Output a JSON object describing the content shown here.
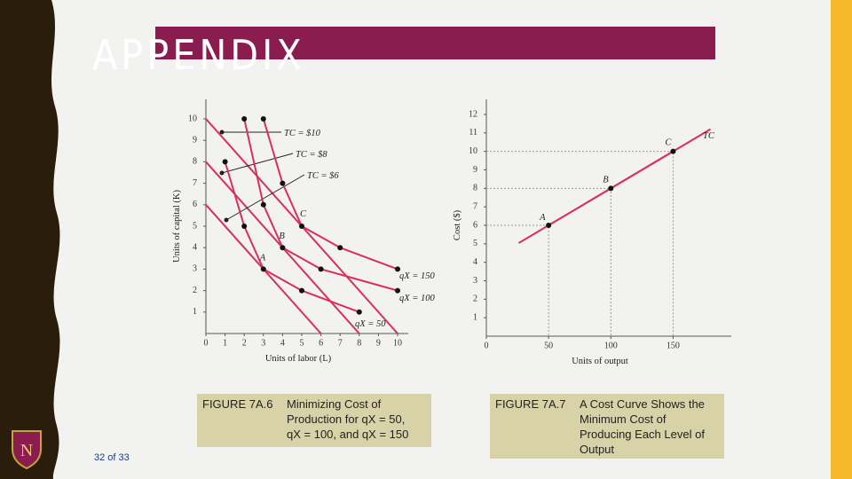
{
  "slide": {
    "title": "APPENDIX",
    "page": "32 of 33",
    "captions": [
      {
        "label": "FIGURE 7A.6",
        "lines": [
          "Minimizing Cost of",
          "Production for qX = 50,",
          "qX = 100, and qX = 150"
        ]
      },
      {
        "label": "FIGURE 7A.7",
        "lines": [
          "A Cost Curve Shows the",
          "Minimum Cost of",
          "Producing Each Level of",
          "Output"
        ]
      }
    ]
  },
  "chart_data": [
    {
      "type": "line",
      "xlabel": "Units of labor (L)",
      "ylabel": "Units of capital (K)",
      "xlim": [
        0,
        10
      ],
      "ylim": [
        0,
        10
      ],
      "xticks": [
        0,
        1,
        2,
        3,
        4,
        5,
        6,
        7,
        8,
        9,
        10
      ],
      "yticks": [
        1,
        2,
        3,
        4,
        5,
        6,
        7,
        8,
        9,
        10
      ],
      "series": [
        {
          "name": "TC = $10",
          "color": "#d9305a",
          "markers": false,
          "x": [
            0,
            10
          ],
          "values": [
            10,
            0
          ]
        },
        {
          "name": "TC = $8",
          "color": "#d9305a",
          "markers": false,
          "x": [
            0,
            8
          ],
          "values": [
            8,
            0
          ]
        },
        {
          "name": "TC = $6",
          "color": "#d9305a",
          "markers": false,
          "x": [
            0,
            6
          ],
          "values": [
            6,
            0
          ]
        },
        {
          "name": "qX = 150",
          "color": "#d9305a",
          "markers": true,
          "x": [
            3,
            4,
            5,
            7,
            10
          ],
          "values": [
            10,
            7,
            5,
            4,
            3
          ]
        },
        {
          "name": "qX = 100",
          "color": "#d9305a",
          "markers": true,
          "x": [
            2,
            3,
            4,
            6,
            10
          ],
          "values": [
            10,
            6,
            4,
            3,
            2
          ]
        },
        {
          "name": "qX = 50",
          "color": "#d9305a",
          "markers": true,
          "x": [
            1,
            2,
            3,
            5,
            8
          ],
          "values": [
            8,
            5,
            3,
            2,
            1
          ]
        }
      ],
      "points": [
        {
          "label": "A",
          "x": 3,
          "y": 3
        },
        {
          "label": "B",
          "x": 4,
          "y": 4
        },
        {
          "label": "C",
          "x": 5,
          "y": 5
        }
      ]
    },
    {
      "type": "line",
      "xlabel": "Units of output",
      "ylabel": "Cost ($)",
      "xlim": [
        0,
        180
      ],
      "ylim": [
        0,
        12
      ],
      "xticks": [
        0,
        50,
        100,
        150
      ],
      "yticks": [
        1,
        2,
        3,
        4,
        5,
        6,
        7,
        8,
        9,
        10,
        11,
        12
      ],
      "series": [
        {
          "name": "TC",
          "color": "#d9305a",
          "markers": true,
          "x": [
            50,
            100,
            150
          ],
          "values": [
            6,
            8,
            10
          ]
        }
      ],
      "points": [
        {
          "label": "A",
          "x": 50,
          "y": 6
        },
        {
          "label": "B",
          "x": 100,
          "y": 8
        },
        {
          "label": "C",
          "x": 150,
          "y": 10
        }
      ]
    }
  ]
}
